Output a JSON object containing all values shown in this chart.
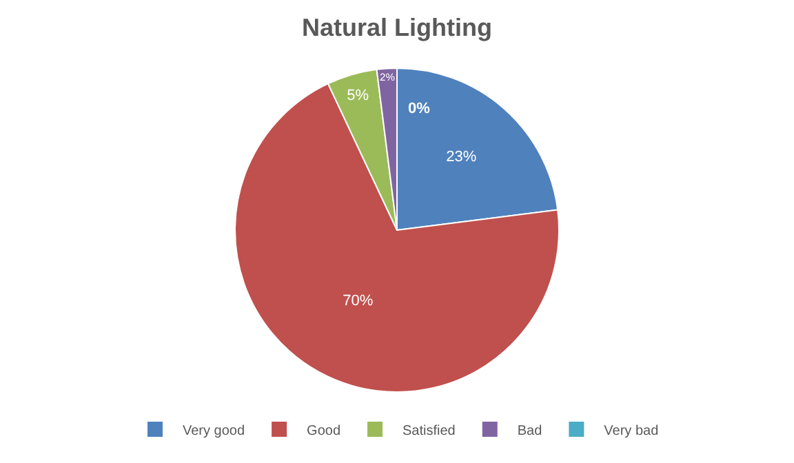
{
  "chart_data": {
    "type": "pie",
    "title": "Natural Lighting",
    "categories": [
      "Very good",
      "Good",
      "Satisfied",
      "Bad",
      "Very bad"
    ],
    "values": [
      23,
      70,
      5,
      2,
      0
    ],
    "colors": [
      "#4f81bd",
      "#c0504d",
      "#9bbb59",
      "#8064a2",
      "#4bacc6"
    ],
    "value_labels": [
      "23%",
      "70%",
      "5%",
      "2%",
      "0%"
    ],
    "legend": "bottom"
  }
}
